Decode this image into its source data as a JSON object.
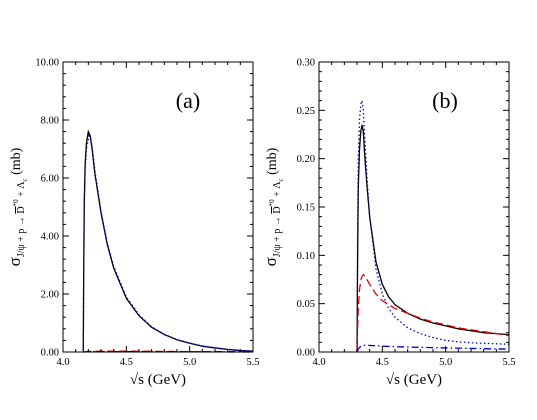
{
  "chart_data": [
    {
      "type": "line",
      "panel_label": "(a)",
      "xlabel": "√s   (GeV)",
      "ylabel_parts": {
        "sigma": "σ",
        "subscript": "J/ψ + p → ",
        "dbar": "D",
        "superscript": "*0",
        "after": " + Λ",
        "lambda_sub": "c",
        "unit": "(mb)"
      },
      "xlim": [
        4.0,
        5.5
      ],
      "ylim": [
        0.0,
        10.0
      ],
      "x_ticks": [
        "4.0",
        "4.5",
        "5.0",
        "5.5"
      ],
      "y_ticks": [
        "0.00",
        "2.00",
        "4.00",
        "6.00",
        "8.00",
        "10.00"
      ],
      "series": [
        {
          "style": "solid",
          "color": "#000000",
          "points": [
            [
              4.16,
              0.0
            ],
            [
              4.163,
              2.5
            ],
            [
              4.168,
              5.2
            ],
            [
              4.175,
              6.5
            ],
            [
              4.185,
              7.2
            ],
            [
              4.2,
              7.6
            ],
            [
              4.215,
              7.45
            ],
            [
              4.23,
              7.0
            ],
            [
              4.25,
              6.2
            ],
            [
              4.3,
              4.8
            ],
            [
              4.35,
              3.7
            ],
            [
              4.4,
              2.9
            ],
            [
              4.5,
              1.85
            ],
            [
              4.6,
              1.25
            ],
            [
              4.7,
              0.85
            ],
            [
              4.8,
              0.6
            ],
            [
              4.9,
              0.42
            ],
            [
              5.0,
              0.3
            ],
            [
              5.1,
              0.2
            ],
            [
              5.2,
              0.14
            ],
            [
              5.3,
              0.09
            ],
            [
              5.4,
              0.05
            ],
            [
              5.5,
              0.03
            ]
          ]
        },
        {
          "style": "dotted",
          "color": "#0000cc",
          "points": [
            [
              4.16,
              0.0
            ],
            [
              4.163,
              2.4
            ],
            [
              4.168,
              5.0
            ],
            [
              4.175,
              6.3
            ],
            [
              4.185,
              7.0
            ],
            [
              4.205,
              7.45
            ],
            [
              4.22,
              7.35
            ],
            [
              4.235,
              6.9
            ],
            [
              4.255,
              6.15
            ],
            [
              4.3,
              4.85
            ],
            [
              4.35,
              3.75
            ],
            [
              4.4,
              2.95
            ],
            [
              4.5,
              1.9
            ],
            [
              4.6,
              1.28
            ],
            [
              4.7,
              0.87
            ],
            [
              4.8,
              0.61
            ],
            [
              4.9,
              0.43
            ],
            [
              5.0,
              0.31
            ],
            [
              5.1,
              0.21
            ],
            [
              5.2,
              0.14
            ],
            [
              5.3,
              0.09
            ],
            [
              5.4,
              0.05
            ],
            [
              5.5,
              0.03
            ]
          ]
        },
        {
          "style": "dashed",
          "color": "#e00000",
          "points": [
            [
              4.16,
              0.0
            ],
            [
              4.2,
              0.02
            ],
            [
              4.3,
              0.03
            ],
            [
              4.5,
              0.03
            ],
            [
              4.8,
              0.02
            ],
            [
              5.1,
              0.01
            ],
            [
              5.5,
              0.01
            ]
          ]
        },
        {
          "style": "dashdot",
          "color": "#0000cc",
          "points": [
            [
              4.16,
              0.0
            ],
            [
              4.2,
              0.01
            ],
            [
              4.4,
              0.01
            ],
            [
              4.8,
              0.01
            ],
            [
              5.5,
              0.0
            ]
          ]
        }
      ]
    },
    {
      "type": "line",
      "panel_label": "(b)",
      "xlabel": "√s   (GeV)",
      "ylabel_parts": {
        "sigma": "σ",
        "subscript": "J/ψ + p → ",
        "dbar": "D",
        "superscript": "*0",
        "after": " + Λ",
        "lambda_sub": "c",
        "unit": "(mb)"
      },
      "xlim": [
        4.0,
        5.5
      ],
      "ylim": [
        0.0,
        0.3
      ],
      "x_ticks": [
        "4.0",
        "4.5",
        "5.0",
        "5.5"
      ],
      "y_ticks": [
        "0.00",
        "0.05",
        "0.10",
        "0.15",
        "0.20",
        "0.25",
        "0.30"
      ],
      "series": [
        {
          "style": "solid",
          "color": "#000000",
          "points": [
            [
              4.3,
              0.0
            ],
            [
              4.305,
              0.1
            ],
            [
              4.31,
              0.17
            ],
            [
              4.32,
              0.21
            ],
            [
              4.33,
              0.228
            ],
            [
              4.34,
              0.235
            ],
            [
              4.35,
              0.228
            ],
            [
              4.36,
              0.205
            ],
            [
              4.38,
              0.17
            ],
            [
              4.4,
              0.14
            ],
            [
              4.45,
              0.093
            ],
            [
              4.5,
              0.07
            ],
            [
              4.55,
              0.057
            ],
            [
              4.6,
              0.049
            ],
            [
              4.7,
              0.04
            ],
            [
              4.8,
              0.034
            ],
            [
              4.9,
              0.03
            ],
            [
              5.0,
              0.027
            ],
            [
              5.1,
              0.024
            ],
            [
              5.2,
              0.022
            ],
            [
              5.3,
              0.02
            ],
            [
              5.4,
              0.019
            ],
            [
              5.5,
              0.018
            ]
          ]
        },
        {
          "style": "dotted",
          "color": "#0000cc",
          "points": [
            [
              4.3,
              0.0
            ],
            [
              4.305,
              0.12
            ],
            [
              4.31,
              0.2
            ],
            [
              4.32,
              0.24
            ],
            [
              4.33,
              0.256
            ],
            [
              4.34,
              0.26
            ],
            [
              4.35,
              0.25
            ],
            [
              4.36,
              0.225
            ],
            [
              4.38,
              0.178
            ],
            [
              4.4,
              0.14
            ],
            [
              4.45,
              0.086
            ],
            [
              4.5,
              0.06
            ],
            [
              4.55,
              0.045
            ],
            [
              4.6,
              0.036
            ],
            [
              4.7,
              0.025
            ],
            [
              4.8,
              0.019
            ],
            [
              4.9,
              0.015
            ],
            [
              5.0,
              0.012
            ],
            [
              5.1,
              0.0105
            ],
            [
              5.2,
              0.0095
            ],
            [
              5.3,
              0.009
            ],
            [
              5.4,
              0.0085
            ],
            [
              5.5,
              0.008
            ]
          ]
        },
        {
          "style": "dashed",
          "color": "#e00000",
          "points": [
            [
              4.3,
              0.0
            ],
            [
              4.305,
              0.025
            ],
            [
              4.31,
              0.045
            ],
            [
              4.32,
              0.065
            ],
            [
              4.335,
              0.077
            ],
            [
              4.35,
              0.08
            ],
            [
              4.37,
              0.077
            ],
            [
              4.4,
              0.07
            ],
            [
              4.45,
              0.06
            ],
            [
              4.5,
              0.053
            ],
            [
              4.6,
              0.045
            ],
            [
              4.7,
              0.04
            ],
            [
              4.8,
              0.035
            ],
            [
              4.9,
              0.031
            ],
            [
              5.0,
              0.028
            ],
            [
              5.1,
              0.025
            ],
            [
              5.2,
              0.023
            ],
            [
              5.3,
              0.021
            ],
            [
              5.4,
              0.019
            ],
            [
              5.5,
              0.017
            ]
          ]
        },
        {
          "style": "dashdot",
          "color": "#0000cc",
          "points": [
            [
              4.3,
              0.0
            ],
            [
              4.31,
              0.003
            ],
            [
              4.33,
              0.006
            ],
            [
              4.36,
              0.007
            ],
            [
              4.4,
              0.0068
            ],
            [
              4.5,
              0.006
            ],
            [
              4.6,
              0.0055
            ],
            [
              4.8,
              0.0048
            ],
            [
              5.0,
              0.0042
            ],
            [
              5.2,
              0.0037
            ],
            [
              5.4,
              0.0032
            ],
            [
              5.5,
              0.003
            ]
          ]
        }
      ]
    }
  ]
}
